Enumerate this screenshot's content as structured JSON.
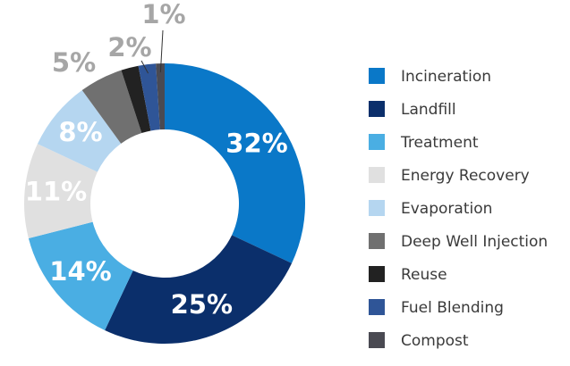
{
  "chart_data": {
    "type": "donut",
    "categories": [
      "Incineration",
      "Landfill",
      "Treatment",
      "Energy Recovery",
      "Evaporation",
      "Deep Well Injection",
      "Reuse",
      "Fuel Blending",
      "Compost"
    ],
    "values": [
      32,
      25,
      14,
      11,
      8,
      5,
      2,
      2,
      1
    ],
    "value_labels": [
      "32%",
      "25%",
      "14%",
      "11%",
      "8%",
      "5%",
      null,
      "2%",
      "1%"
    ],
    "colors": [
      "#0a78c8",
      "#0b2f6b",
      "#4aaee3",
      "#e0e0e0",
      "#b5d6f0",
      "#707070",
      "#222222",
      "#2f5597",
      "#4a4a52"
    ],
    "legend": "right"
  }
}
